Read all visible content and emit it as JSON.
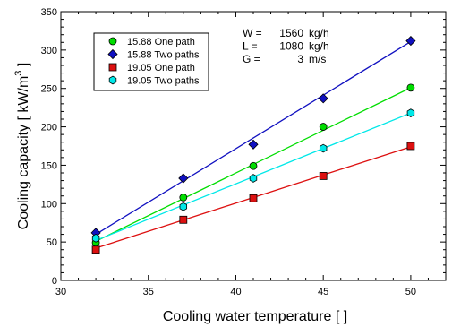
{
  "chart_data": {
    "type": "scatter",
    "title": "",
    "xlabel": "Cooling water temperature [     ]",
    "ylabel": "Cooling capacity [ kW/m",
    "ylabel_sup": "3",
    "ylabel_end": " ]",
    "xlim": [
      30,
      52
    ],
    "ylim": [
      0,
      350
    ],
    "xticks": [
      30,
      35,
      40,
      45,
      50
    ],
    "yticks": [
      0,
      50,
      100,
      150,
      200,
      250,
      300,
      350
    ],
    "grid": false,
    "legend_position": "top-left",
    "x": [
      32,
      37,
      41,
      45,
      50
    ],
    "series": [
      {
        "name": "15.88 One path",
        "marker": "circle",
        "color": "#00dd00",
        "values": [
          49,
          108,
          149,
          200,
          251
        ],
        "fit": [
          [
            32,
            51
          ],
          [
            50,
            251
          ]
        ]
      },
      {
        "name": "15.88 Two paths",
        "marker": "diamond",
        "color": "#1010c0",
        "values": [
          62,
          133,
          177,
          237,
          312
        ],
        "fit": [
          [
            32,
            60
          ],
          [
            50,
            311
          ]
        ]
      },
      {
        "name": "19.05 One path",
        "marker": "square",
        "color": "#dd1010",
        "values": [
          40,
          79,
          107,
          136,
          175
        ],
        "fit": [
          [
            32,
            42
          ],
          [
            50,
            174
          ]
        ]
      },
      {
        "name": "19.05 Two paths",
        "marker": "hexagon",
        "color": "#00e8e8",
        "values": [
          55,
          96,
          133,
          172,
          218
        ],
        "fit": [
          [
            32,
            52
          ],
          [
            50,
            218
          ]
        ]
      }
    ],
    "conditions": [
      {
        "label": "W =",
        "value": "1560",
        "unit": "kg/h"
      },
      {
        "label": "L =",
        "value": "1080",
        "unit": "kg/h"
      },
      {
        "label": "G =",
        "value": "3",
        "unit": "m/s"
      }
    ]
  }
}
